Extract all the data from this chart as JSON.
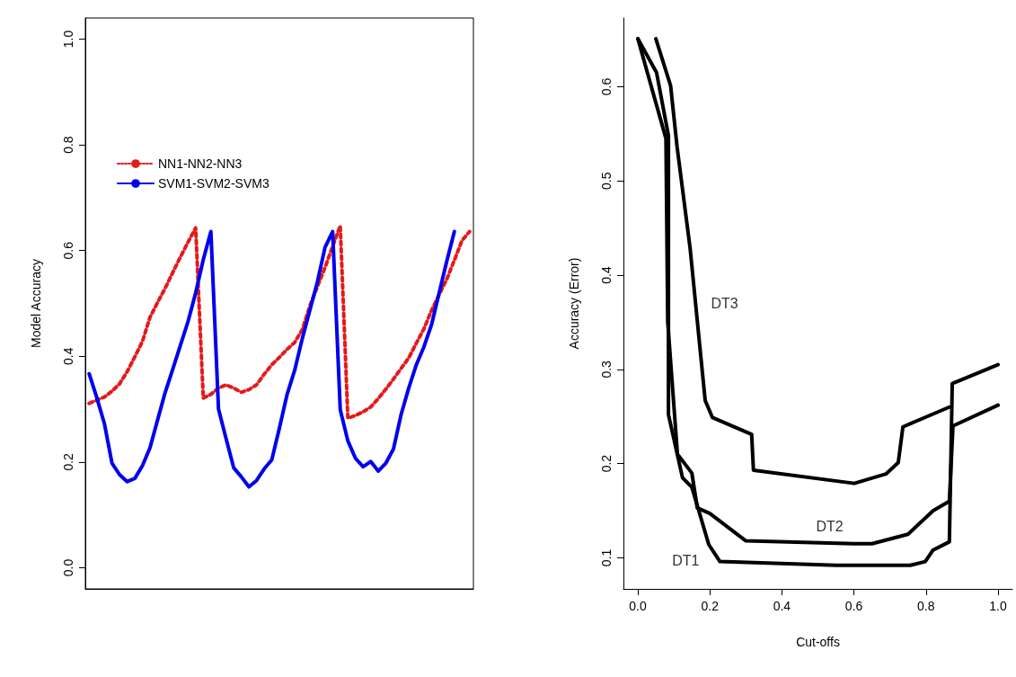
{
  "chart_data": [
    {
      "type": "line",
      "ylabel": "Model Accuracy",
      "categories": [
        null,
        null,
        null,
        null,
        null,
        null,
        null,
        null,
        null,
        null,
        null,
        null,
        null,
        null,
        null,
        null,
        null,
        null,
        null,
        null,
        null,
        null,
        null,
        null,
        null,
        null,
        null,
        null,
        null,
        null,
        null,
        null,
        null,
        null,
        null,
        null,
        null,
        null,
        null,
        null,
        null,
        null,
        null,
        null,
        null,
        null,
        null,
        null,
        null,
        null,
        null
      ],
      "series": [
        {
          "name": "NN1-NN2-NN3",
          "color": "#e41a1c",
          "line_style": "dotted",
          "values": [
            0.311,
            0.317,
            0.323,
            0.334,
            0.348,
            0.371,
            0.399,
            0.428,
            0.474,
            0.502,
            0.529,
            0.559,
            0.588,
            0.616,
            0.643,
            0.321,
            0.328,
            0.34,
            0.346,
            0.34,
            0.332,
            0.337,
            0.346,
            0.366,
            0.384,
            0.398,
            0.413,
            0.426,
            0.45,
            0.495,
            0.532,
            0.568,
            0.608,
            0.647,
            0.283,
            0.288,
            0.295,
            0.304,
            0.32,
            0.338,
            0.357,
            0.377,
            0.397,
            0.425,
            0.452,
            0.487,
            0.517,
            0.546,
            0.582,
            0.619,
            0.636
          ]
        },
        {
          "name": "SVM1-SVM2-SVM3",
          "color": "#0000ee",
          "line_style": "solid",
          "values": [
            0.367,
            0.322,
            0.273,
            0.198,
            0.176,
            0.163,
            0.169,
            0.193,
            0.227,
            0.28,
            0.332,
            0.376,
            0.421,
            0.466,
            0.52,
            0.583,
            0.636,
            0.3,
            0.244,
            0.189,
            0.172,
            0.153,
            0.165,
            0.187,
            0.204,
            0.264,
            0.327,
            0.373,
            0.433,
            0.487,
            0.541,
            0.606,
            0.636,
            0.299,
            0.24,
            0.207,
            0.191,
            0.201,
            0.183,
            0.198,
            0.225,
            0.29,
            0.34,
            0.384,
            0.418,
            0.46,
            0.52,
            0.58,
            0.636,
            null,
            null
          ]
        }
      ],
      "ylim": [
        -0.04,
        1.04
      ],
      "yticks": [
        {
          "value": 0,
          "label": "0.0"
        },
        {
          "value": 0.2,
          "label": "0.2"
        },
        {
          "value": 0.4,
          "label": "0.4"
        },
        {
          "value": 0.6,
          "label": "0.6"
        },
        {
          "value": 0.8,
          "label": "0.8"
        },
        {
          "value": 1,
          "label": "1.0"
        }
      ],
      "tick_labels": "y",
      "legend": "top left",
      "marker": "none",
      "grid": false
    },
    {
      "type": "line",
      "xlabel": "Cut-offs",
      "ylabel": "Accuracy (Error)",
      "series": [
        {
          "color": "#000000",
          "x": [
            0,
            0.052,
            0.085,
            0.085,
            0.124,
            0.15,
            0.197,
            0.228,
            0.55,
            0.756,
            0.798,
            0.819,
            0.865,
            0.873,
            1.0
          ],
          "values": [
            0.651,
            0.615,
            0.548,
            0.252,
            0.185,
            0.175,
            0.114,
            0.096,
            0.092,
            0.092,
            0.096,
            0.108,
            0.117,
            0.285,
            0.305
          ]
        },
        {
          "color": "#000000",
          "x": [
            0,
            0.078,
            0.083,
            0.11,
            0.15,
            0.165,
            0.2,
            0.3,
            0.6,
            0.65,
            0.75,
            0.82,
            0.865,
            0.875,
            1.0
          ],
          "values": [
            0.651,
            0.545,
            0.35,
            0.21,
            0.19,
            0.153,
            0.147,
            0.118,
            0.115,
            0.115,
            0.125,
            0.15,
            0.16,
            0.24,
            0.262
          ]
        },
        {
          "color": "#000000",
          "x": [
            0.05,
            0.091,
            0.109,
            0.145,
            0.187,
            0.207,
            0.316,
            0.321,
            0.601,
            0.689,
            0.723,
            0.736,
            0.865
          ],
          "values": [
            0.651,
            0.601,
            0.536,
            0.429,
            0.267,
            0.249,
            0.231,
            0.193,
            0.179,
            0.189,
            0.201,
            0.239,
            0.26
          ]
        }
      ],
      "annotations": [
        "DT1",
        "DT2",
        "DT3"
      ],
      "xlim": [
        -0.04,
        1.04
      ],
      "xticks": [
        {
          "value": 0,
          "label": "0.0"
        },
        {
          "value": 0.2,
          "label": "0.2"
        },
        {
          "value": 0.4,
          "label": "0.4"
        },
        {
          "value": 0.6,
          "label": "0.6"
        },
        {
          "value": 0.8,
          "label": "0.8"
        },
        {
          "value": 1,
          "label": "1.0"
        }
      ],
      "ylim": [
        0.067,
        0.673
      ],
      "yticks": [
        {
          "value": 0.1,
          "label": "0.1"
        },
        {
          "value": 0.2,
          "label": "0.2"
        },
        {
          "value": 0.3,
          "label": "0.3"
        },
        {
          "value": 0.4,
          "label": "0.4"
        },
        {
          "value": 0.5,
          "label": "0.5"
        },
        {
          "value": 0.6,
          "label": "0.6"
        }
      ],
      "marker": "none",
      "grid": false
    }
  ]
}
